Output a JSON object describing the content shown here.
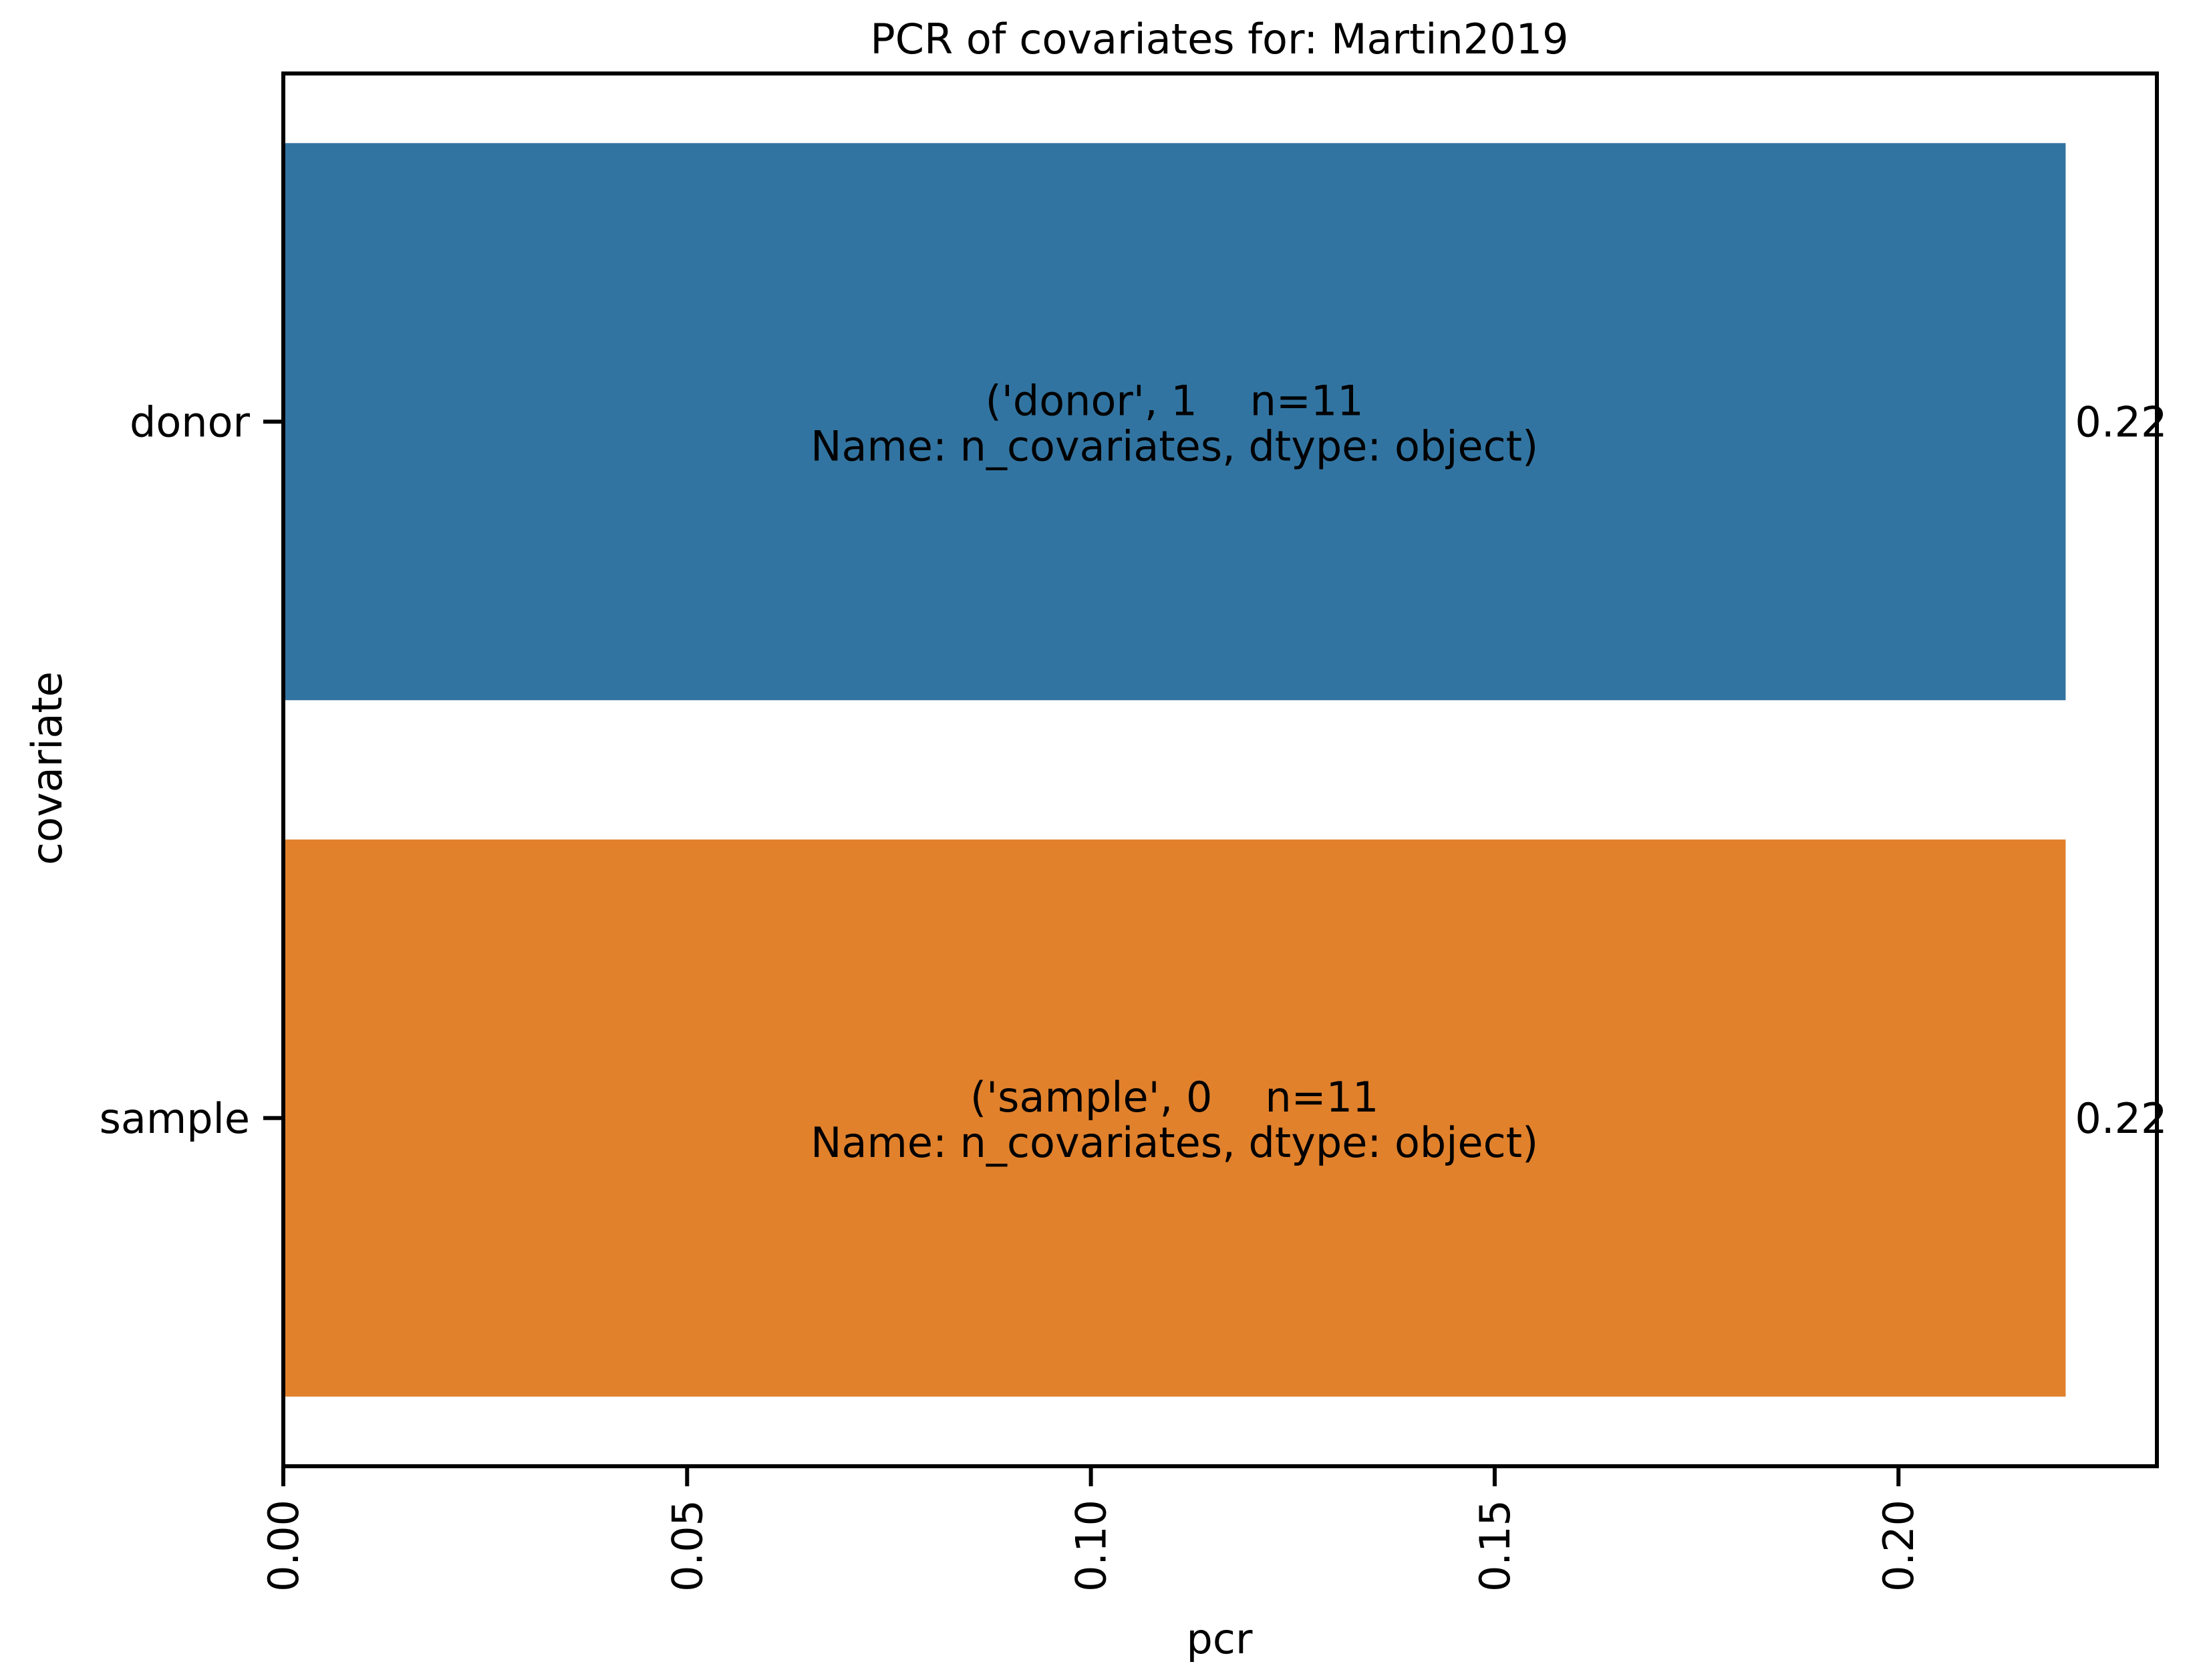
{
  "chart_data": {
    "type": "bar",
    "orientation": "horizontal",
    "title": "PCR of covariates for: Martin2019",
    "xlabel": "pcr",
    "ylabel": "covariate",
    "xlim": [
      0.0,
      0.232
    ],
    "xticks": [
      "0.00",
      "0.05",
      "0.10",
      "0.15",
      "0.20"
    ],
    "tick_label_rotation": 90,
    "grid": false,
    "legend": "none",
    "categories": [
      "donor",
      "sample"
    ],
    "values": [
      0.2207,
      0.2207
    ],
    "colors": [
      "#3274a1",
      "#e1812c"
    ],
    "value_labels": [
      "0.22",
      "0.22"
    ],
    "bar_annotations": [
      [
        "('donor', 1    n=11",
        "Name: n_covariates, dtype: object)"
      ],
      [
        "('sample', 0    n=11",
        "Name: n_covariates, dtype: object)"
      ]
    ]
  }
}
